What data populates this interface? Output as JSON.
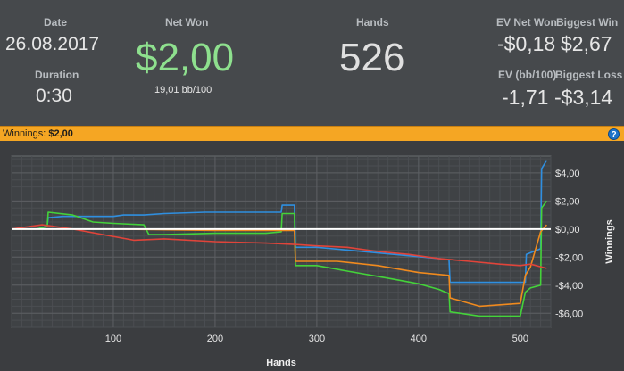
{
  "stats": {
    "date_label": "Date",
    "date_value": "26.08.2017",
    "duration_label": "Duration",
    "duration_value": "0:30",
    "net_won_label": "Net Won",
    "net_won_value": "$2,00",
    "net_won_sub": "19,01 bb/100",
    "hands_label": "Hands",
    "hands_value": "526",
    "ev_net_won_label": "EV Net Won",
    "ev_net_won_value": "-$0,18",
    "biggest_win_label": "Biggest Win",
    "biggest_win_value": "$2,67",
    "ev_bb_label": "EV (bb/100)",
    "ev_bb_value": "-1,71",
    "biggest_loss_label": "Biggest Loss",
    "biggest_loss_value": "-$3,14"
  },
  "winnings_bar": {
    "label": "Winnings:",
    "value": "$2,00",
    "help_icon": "question-circle-icon"
  },
  "colors": {
    "green": "#44d23a",
    "blue": "#2f8fe0",
    "orange": "#f08a1e",
    "red": "#e0443a",
    "zero_line": "#ffffff",
    "accent_bar": "#f5a623",
    "net_won": "#8ee08e"
  },
  "chart_data": {
    "type": "line",
    "xlabel": "Hands",
    "ylabel": "Winnings",
    "xlim": [
      0,
      530
    ],
    "ylim": [
      -7,
      5.2
    ],
    "x_ticks": [
      100,
      200,
      300,
      400,
      500
    ],
    "x_tick_labels": [
      "100",
      "200",
      "300",
      "400",
      "500"
    ],
    "y_ticks": [
      4,
      2,
      0,
      -2,
      -4,
      -6
    ],
    "y_tick_labels": [
      "$4,00",
      "$2,00",
      "$0,00",
      "-$2,00",
      "-$4,00",
      "-$6,00"
    ],
    "grid": true,
    "zero_line": true,
    "series": [
      {
        "color": "#2f8fe0",
        "x": [
          0,
          25,
          35,
          36,
          50,
          100,
          110,
          130,
          150,
          190,
          220,
          250,
          265,
          266,
          278,
          279,
          300,
          330,
          360,
          390,
          420,
          430,
          431,
          440,
          480,
          490,
          505,
          506,
          520,
          521,
          526
        ],
        "y": [
          0,
          0,
          0.2,
          0.8,
          0.9,
          0.9,
          1.0,
          1.0,
          1.1,
          1.2,
          1.2,
          1.2,
          1.2,
          1.7,
          1.7,
          -1.3,
          -1.3,
          -1.5,
          -1.7,
          -1.9,
          -2.1,
          -2.2,
          -3.8,
          -3.8,
          -3.8,
          -3.8,
          -3.8,
          -1.8,
          -1.4,
          4.3,
          4.9
        ]
      },
      {
        "color": "#44d23a",
        "x": [
          0,
          25,
          35,
          36,
          60,
          80,
          100,
          130,
          135,
          150,
          200,
          250,
          265,
          266,
          278,
          279,
          300,
          330,
          370,
          400,
          420,
          430,
          431,
          460,
          500,
          505,
          510,
          520,
          521,
          526
        ],
        "y": [
          0,
          0,
          0.2,
          1.2,
          1.0,
          0.5,
          0.4,
          0.3,
          -0.4,
          -0.4,
          -0.3,
          -0.3,
          -0.2,
          1.1,
          1.1,
          -2.6,
          -2.6,
          -3.0,
          -3.5,
          -3.9,
          -4.3,
          -4.6,
          -5.9,
          -6.2,
          -6.2,
          -4.5,
          -4.2,
          -4.0,
          1.5,
          2.0
        ]
      },
      {
        "color": "#f08a1e",
        "x": [
          0,
          100,
          200,
          278,
          279,
          300,
          320,
          360,
          400,
          430,
          431,
          460,
          500,
          505,
          510,
          520,
          526
        ],
        "y": [
          0,
          0,
          -0.1,
          -0.1,
          -2.3,
          -2.3,
          -2.3,
          -2.6,
          -3.1,
          -3.3,
          -4.9,
          -5.5,
          -5.3,
          -3.3,
          -2.7,
          -0.2,
          0.3
        ]
      },
      {
        "color": "#e0443a",
        "x": [
          0,
          30,
          60,
          90,
          120,
          150,
          200,
          250,
          278,
          300,
          330,
          360,
          390,
          420,
          450,
          480,
          500,
          510,
          526
        ],
        "y": [
          0,
          0.3,
          0.0,
          -0.4,
          -0.8,
          -0.7,
          -0.9,
          -1.0,
          -1.1,
          -1.2,
          -1.3,
          -1.6,
          -1.8,
          -2.1,
          -2.3,
          -2.5,
          -2.6,
          -2.5,
          -2.8
        ]
      }
    ]
  }
}
